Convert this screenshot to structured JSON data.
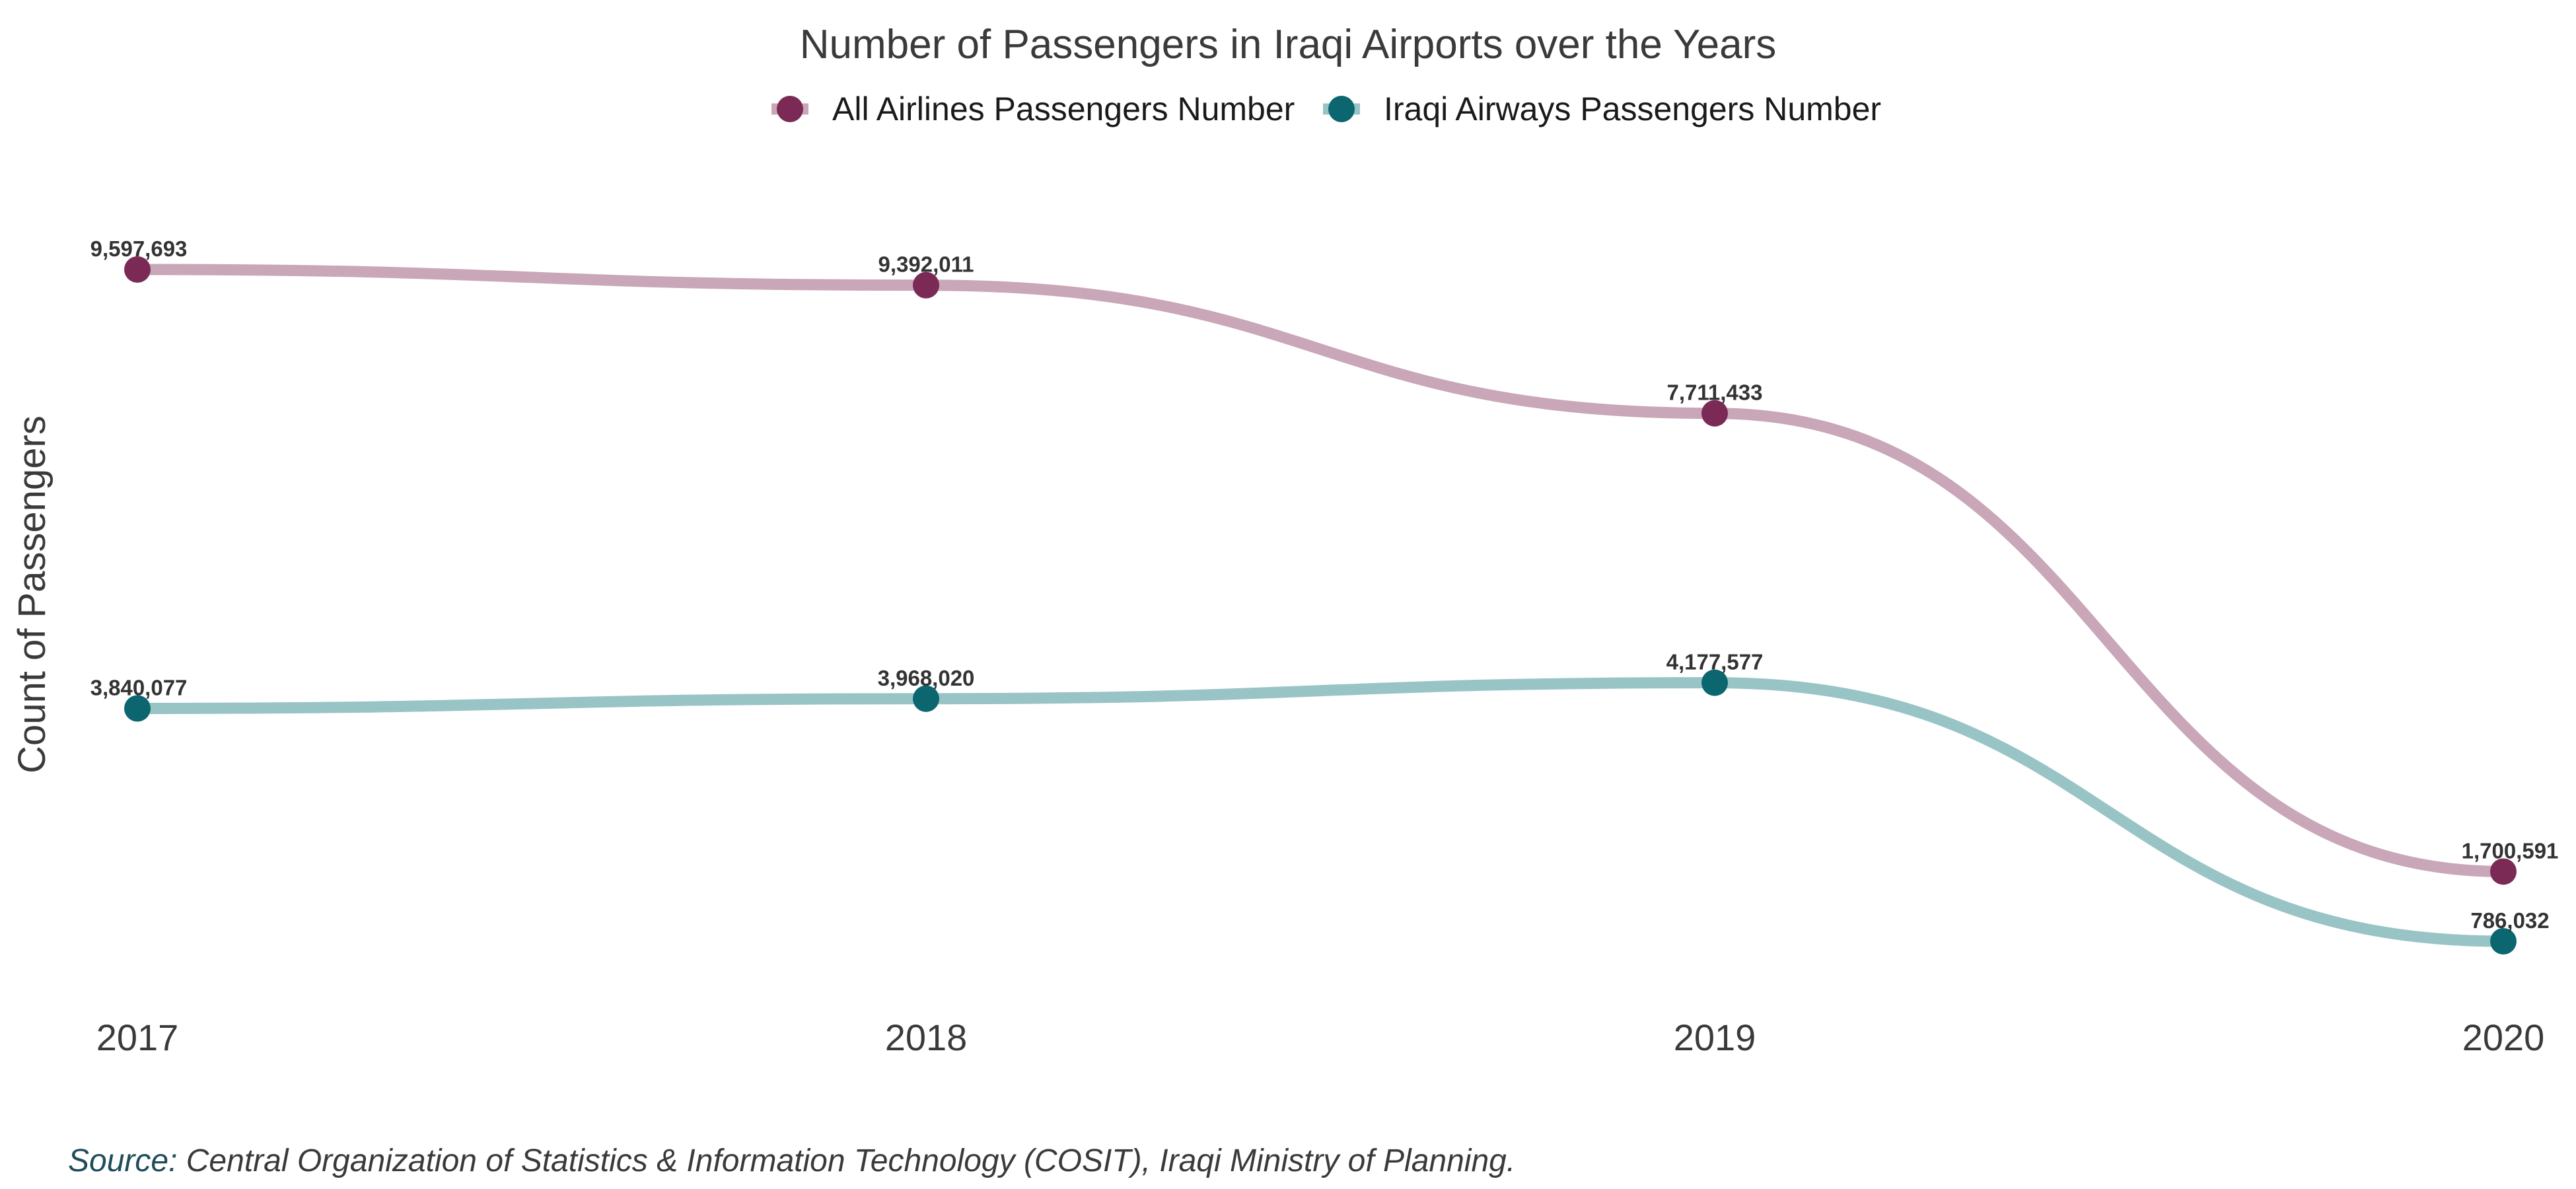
{
  "chart_data": {
    "type": "line",
    "title": "Number of Passengers in Iraqi Airports over the Years",
    "xlabel": "",
    "ylabel": "Count of Passengers",
    "categories": [
      "2017",
      "2018",
      "2019",
      "2020"
    ],
    "ylim": [
      0,
      10000000
    ],
    "grid": false,
    "legend_position": "top-center",
    "series": [
      {
        "name": "All Airlines Passengers Number",
        "values": [
          9597693,
          9392011,
          7711433,
          1700591
        ],
        "labels": [
          "9,597,693",
          "9,392,011",
          "7,711,433",
          "1,700,591"
        ],
        "line_color": "#c9a6b8",
        "point_color": "#7b2a55"
      },
      {
        "name": "Iraqi Airways Passengers Number",
        "values": [
          3840077,
          3968020,
          4177577,
          786032
        ],
        "labels": [
          "3,840,077",
          "3,968,020",
          "4,177,577",
          "786,032"
        ],
        "line_color": "#99c4c6",
        "point_color": "#0b6670"
      }
    ]
  },
  "source": {
    "prefix": "Source:",
    "text": " Central Organization of Statistics & Information Technology (COSIT), Iraqi Ministry of Planning.",
    "prefix_color": "#1f4d5a"
  }
}
